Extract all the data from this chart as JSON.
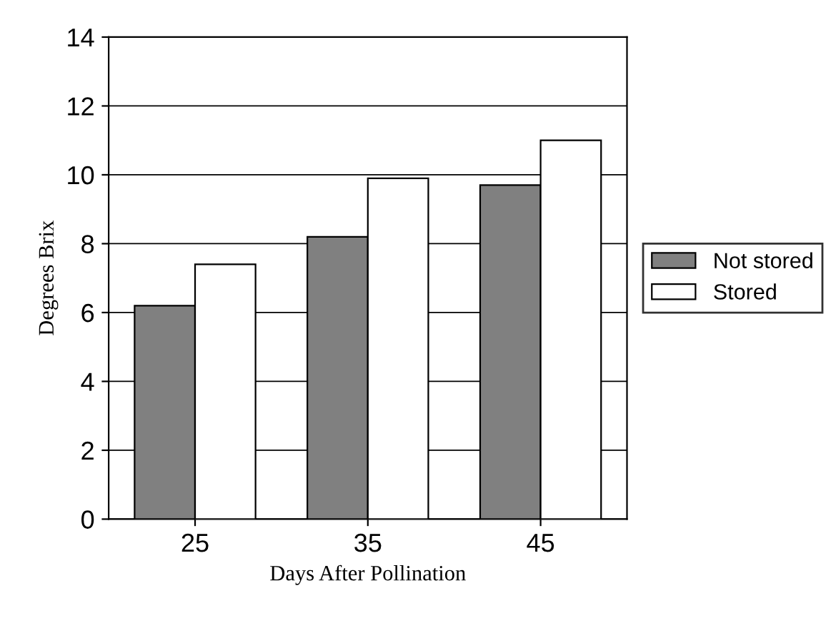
{
  "chart_data": {
    "type": "bar",
    "xlabel": "Days After Pollination",
    "ylabel": "Degrees Brix",
    "categories": [
      "25",
      "35",
      "45"
    ],
    "series": [
      {
        "name": "Not stored",
        "color": "#808080",
        "values": [
          6.2,
          8.2,
          9.7
        ]
      },
      {
        "name": "Stored",
        "color": "#ffffff",
        "values": [
          7.4,
          9.9,
          11.0
        ]
      }
    ],
    "ylim": [
      0,
      14
    ],
    "yticks": [
      0,
      2,
      4,
      6,
      8,
      10,
      12,
      14
    ],
    "grid": "y",
    "legend": "right"
  }
}
